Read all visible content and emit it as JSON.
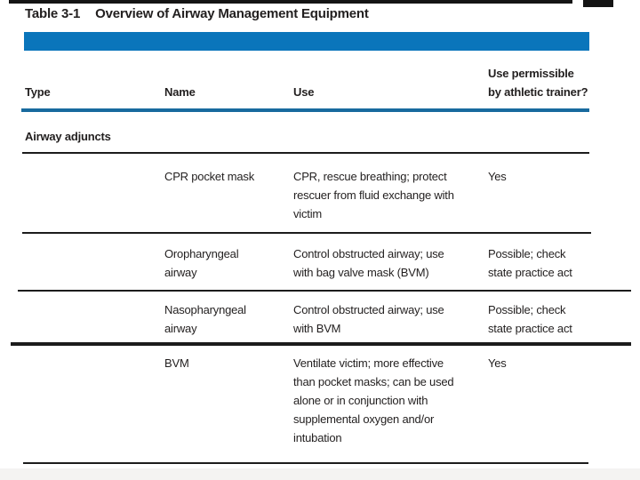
{
  "title": {
    "number": "Table 3-1",
    "caption": "Overview of Airway Management Equipment"
  },
  "colors": {
    "banner_blue": "#0a75bb",
    "header_rule_blue": "#186a9e",
    "rule_black": "#1c1c1c",
    "text": "#221f1f",
    "bottom_strip_gray": "#f4f3f2"
  },
  "table": {
    "headers": {
      "type": "Type",
      "name": "Name",
      "use": "Use",
      "permissible": "Use permissible\nby athletic trainer?"
    },
    "section_label": "Airway adjuncts",
    "rows": [
      {
        "name": "CPR pocket mask",
        "use": "CPR, rescue breathing; protect\nrescuer from fluid exchange with\nvictim",
        "permissible": "Yes"
      },
      {
        "name": "Oropharyngeal\nairway",
        "use": "Control obstructed airway; use\nwith bag valve mask (BVM)",
        "permissible": "Possible; check\nstate practice act"
      },
      {
        "name": "Nasopharyngeal\nairway",
        "use": "Control obstructed airway; use\nwith BVM",
        "permissible": "Possible; check\nstate practice act"
      },
      {
        "name": "BVM",
        "use": "Ventilate victim; more effective\nthan pocket masks; can be used\nalone or in conjunction with\nsupplemental oxygen and/or\nintubation",
        "permissible": "Yes"
      }
    ]
  }
}
